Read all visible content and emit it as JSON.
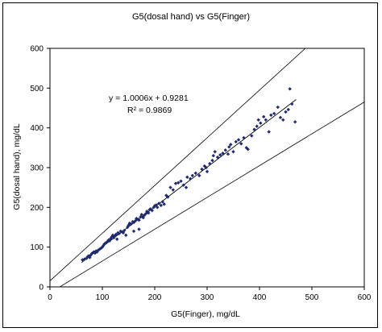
{
  "chart_data": {
    "type": "scatter",
    "title": "G5(dosal hand) vs G5(Finger)",
    "xlabel": "G5(Finger), mg/dL",
    "ylabel": "G5(dosal hand), mg/dL",
    "xlim": [
      0,
      600
    ],
    "ylim": [
      0,
      600
    ],
    "x_ticks": [
      "0",
      "100",
      "200",
      "300",
      "400",
      "500",
      "600"
    ],
    "y_ticks": [
      "0",
      "100",
      "200",
      "300",
      "400",
      "500",
      "600"
    ],
    "grid": false,
    "legend": "none",
    "marker_color": "#1f2a6e",
    "equation": "y = 1.0006x + 0.9281",
    "r_squared_label": "R² = 0.9869",
    "fit": {
      "slope": 1.0006,
      "intercept": 0.9281,
      "x_range": [
        60,
        470
      ]
    },
    "reference_lines": [
      {
        "slope": 1.2,
        "intercept": 15
      },
      {
        "slope": 0.8,
        "intercept": -15
      }
    ],
    "points": [
      [
        62,
        68
      ],
      [
        66,
        70
      ],
      [
        70,
        72
      ],
      [
        72,
        76
      ],
      [
        74,
        78
      ],
      [
        76,
        74
      ],
      [
        78,
        80
      ],
      [
        80,
        84
      ],
      [
        82,
        86
      ],
      [
        84,
        88
      ],
      [
        86,
        85
      ],
      [
        88,
        90
      ],
      [
        90,
        88
      ],
      [
        92,
        92
      ],
      [
        95,
        95
      ],
      [
        98,
        98
      ],
      [
        100,
        100
      ],
      [
        102,
        104
      ],
      [
        104,
        108
      ],
      [
        106,
        110
      ],
      [
        108,
        112
      ],
      [
        110,
        114
      ],
      [
        112,
        118
      ],
      [
        114,
        116
      ],
      [
        116,
        122
      ],
      [
        118,
        126
      ],
      [
        120,
        130
      ],
      [
        122,
        124
      ],
      [
        124,
        128
      ],
      [
        126,
        132
      ],
      [
        128,
        120
      ],
      [
        130,
        136
      ],
      [
        132,
        134
      ],
      [
        135,
        140
      ],
      [
        138,
        138
      ],
      [
        140,
        136
      ],
      [
        142,
        142
      ],
      [
        145,
        130
      ],
      [
        148,
        150
      ],
      [
        150,
        155
      ],
      [
        152,
        160
      ],
      [
        155,
        158
      ],
      [
        158,
        164
      ],
      [
        160,
        162
      ],
      [
        163,
        166
      ],
      [
        165,
        172
      ],
      [
        168,
        170
      ],
      [
        170,
        168
      ],
      [
        173,
        176
      ],
      [
        175,
        182
      ],
      [
        178,
        174
      ],
      [
        180,
        180
      ],
      [
        183,
        184
      ],
      [
        185,
        190
      ],
      [
        188,
        186
      ],
      [
        190,
        194
      ],
      [
        192,
        196
      ],
      [
        195,
        192
      ],
      [
        198,
        200
      ],
      [
        200,
        204
      ],
      [
        203,
        206
      ],
      [
        205,
        200
      ],
      [
        208,
        210
      ],
      [
        212,
        205
      ],
      [
        215,
        214
      ],
      [
        218,
        208
      ],
      [
        222,
        230
      ],
      [
        225,
        226
      ],
      [
        230,
        250
      ],
      [
        235,
        244
      ],
      [
        240,
        260
      ],
      [
        245,
        262
      ],
      [
        250,
        266
      ],
      [
        255,
        256
      ],
      [
        260,
        250
      ],
      [
        262,
        276
      ],
      [
        268,
        272
      ],
      [
        272,
        280
      ],
      [
        278,
        286
      ],
      [
        285,
        280
      ],
      [
        290,
        296
      ],
      [
        295,
        304
      ],
      [
        298,
        300
      ],
      [
        300,
        290
      ],
      [
        305,
        310
      ],
      [
        310,
        318
      ],
      [
        312,
        330
      ],
      [
        315,
        340
      ],
      [
        320,
        326
      ],
      [
        325,
        332
      ],
      [
        330,
        336
      ],
      [
        335,
        344
      ],
      [
        340,
        334
      ],
      [
        342,
        352
      ],
      [
        345,
        358
      ],
      [
        350,
        340
      ],
      [
        355,
        365
      ],
      [
        360,
        370
      ],
      [
        365,
        360
      ],
      [
        370,
        375
      ],
      [
        375,
        350
      ],
      [
        378,
        346
      ],
      [
        385,
        380
      ],
      [
        390,
        396
      ],
      [
        395,
        404
      ],
      [
        398,
        420
      ],
      [
        402,
        412
      ],
      [
        408,
        428
      ],
      [
        412,
        420
      ],
      [
        418,
        390
      ],
      [
        422,
        432
      ],
      [
        428,
        436
      ],
      [
        435,
        452
      ],
      [
        440,
        426
      ],
      [
        445,
        420
      ],
      [
        450,
        440
      ],
      [
        455,
        446
      ],
      [
        458,
        498
      ],
      [
        462,
        460
      ],
      [
        468,
        415
      ],
      [
        170,
        145
      ],
      [
        160,
        140
      ]
    ]
  }
}
